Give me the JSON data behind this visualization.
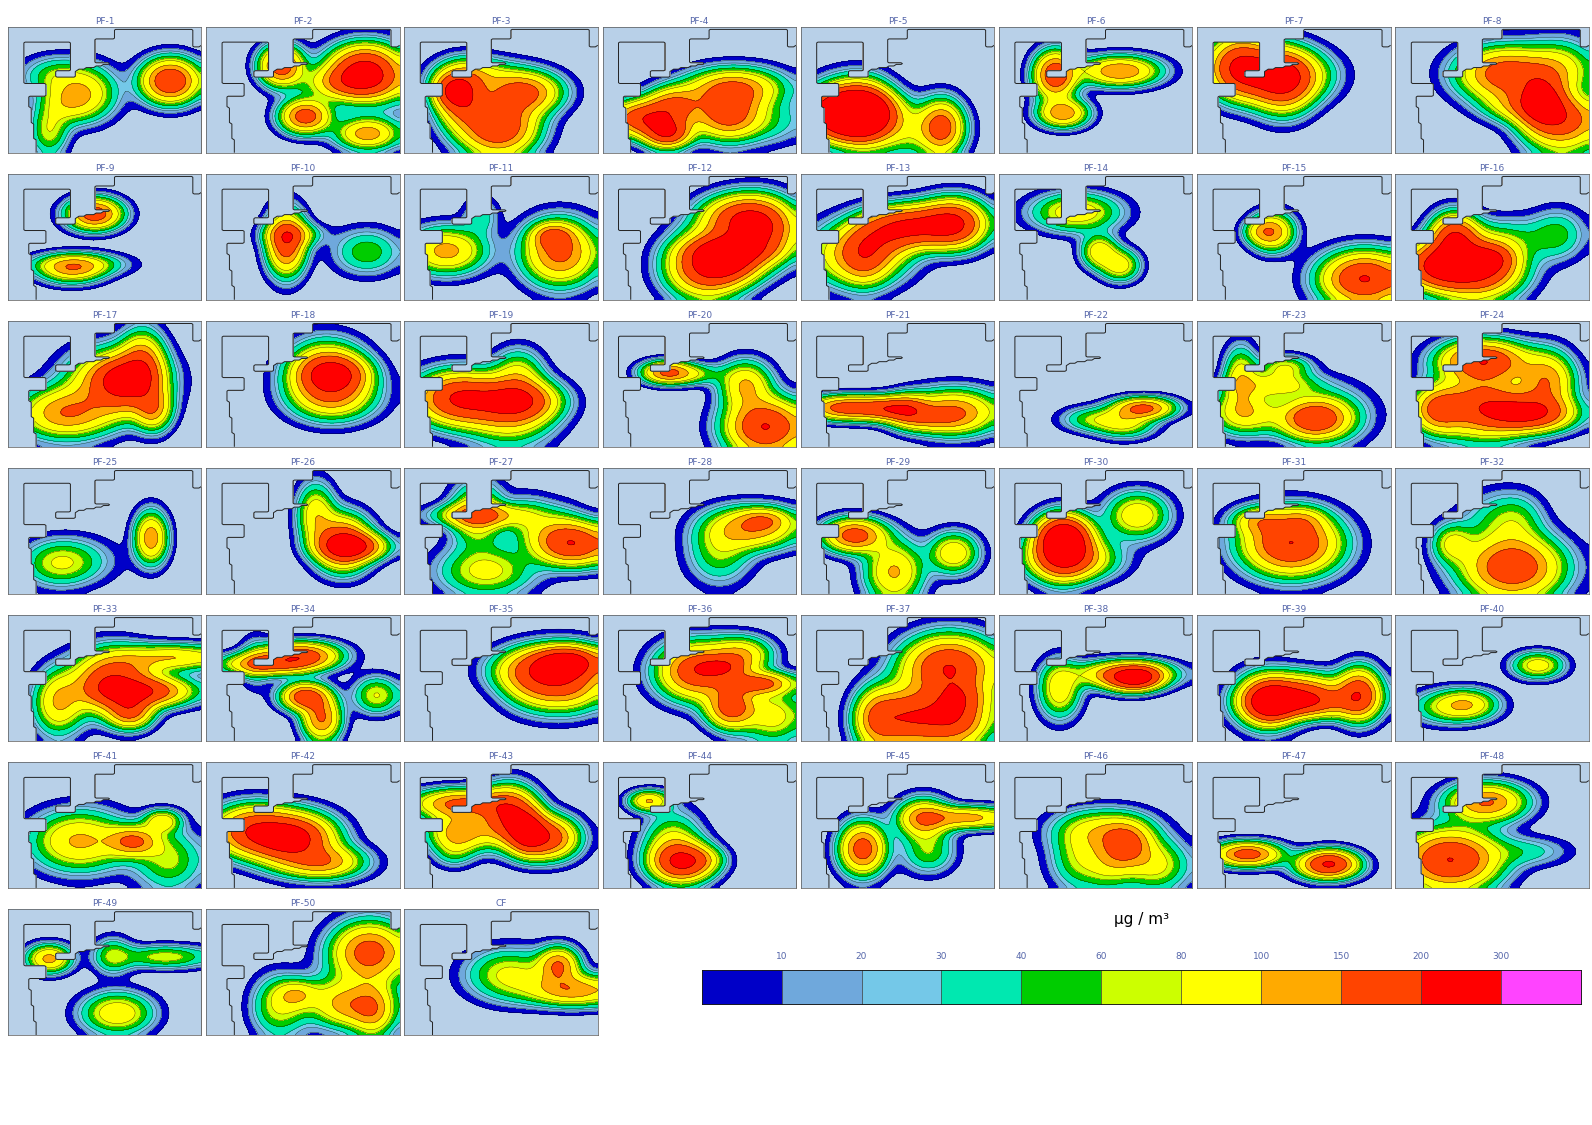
{
  "labels": [
    "PF-1",
    "PF-2",
    "PF-3",
    "PF-4",
    "PF-5",
    "PF-6",
    "PF-7",
    "PF-8",
    "PF-9",
    "PF-10",
    "PF-11",
    "PF-12",
    "PF-13",
    "PF-14",
    "PF-15",
    "PF-16",
    "PF-17",
    "PF-18",
    "PF-19",
    "PF-20",
    "PF-21",
    "PF-22",
    "PF-23",
    "PF-24",
    "PF-25",
    "PF-26",
    "PF-27",
    "PF-28",
    "PF-29",
    "PF-30",
    "PF-31",
    "PF-32",
    "PF-33",
    "PF-34",
    "PF-35",
    "PF-36",
    "PF-37",
    "PF-38",
    "PF-39",
    "PF-40",
    "PF-41",
    "PF-42",
    "PF-43",
    "PF-44",
    "PF-45",
    "PF-46",
    "PF-47",
    "PF-48",
    "PF-49",
    "PF-50",
    "CF"
  ],
  "colorbar_tick_labels": [
    "10",
    "20",
    "30",
    "40",
    "60",
    "80",
    "100",
    "150",
    "200",
    "300"
  ],
  "colorbar_tick_values": [
    10,
    20,
    30,
    40,
    60,
    80,
    100,
    150,
    200,
    300
  ],
  "colorbar_seg_colors": [
    "#0000c8",
    "#6fa8dc",
    "#74c8e8",
    "#00e8b0",
    "#00cc00",
    "#ccff00",
    "#ffff00",
    "#ffaa00",
    "#ff4400",
    "#ff0000",
    "#ff44ff"
  ],
  "colorbar_label": "μg / m³",
  "label_color": "#5566aa",
  "label_fontsize": 6.5,
  "background_color": "#ffffff",
  "land_color": "#aaaaaa",
  "sea_color": "#b8d0e8",
  "border_color": "#222222",
  "n_cols": 8,
  "n_rows": 7,
  "figure_width": 15.92,
  "figure_height": 11.25,
  "pm10_levels": [
    0,
    10,
    20,
    30,
    40,
    60,
    80,
    100,
    150,
    200,
    300,
    500
  ],
  "pm10_colors": [
    "#b8d0e8",
    "#0000c8",
    "#6fa8dc",
    "#74c8e8",
    "#00e8b0",
    "#00cc00",
    "#ccff00",
    "#ffff00",
    "#ffaa00",
    "#ff4400",
    "#ff0000",
    "#ff44ff"
  ]
}
